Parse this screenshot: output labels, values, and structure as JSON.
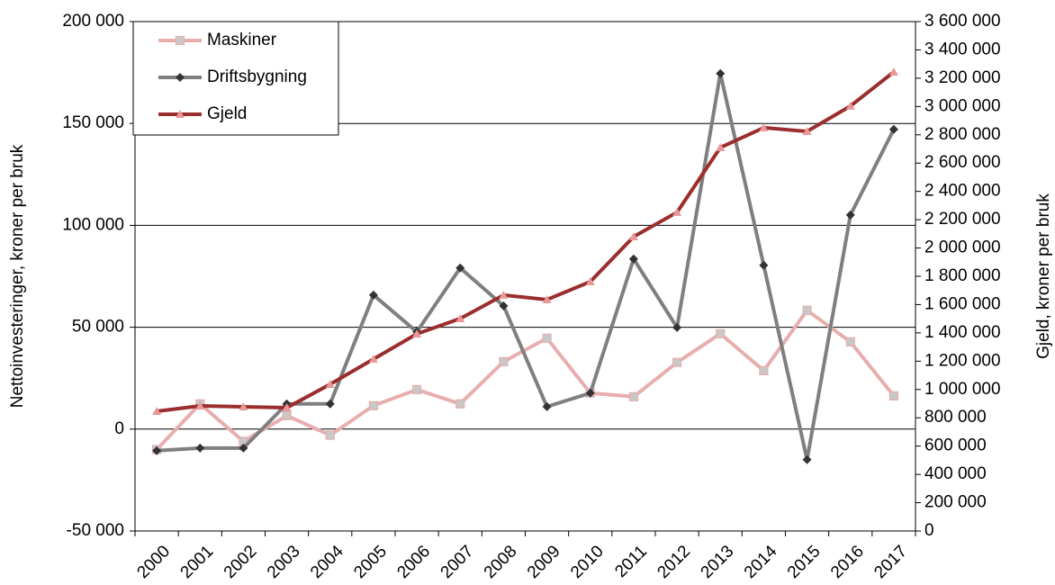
{
  "chart_data": {
    "type": "line",
    "categories": [
      "2000",
      "2001",
      "2002",
      "2003",
      "2004",
      "2005",
      "2006",
      "2007",
      "2008",
      "2009",
      "2010",
      "2011",
      "2012",
      "2013",
      "2014",
      "2015",
      "2016",
      "2017"
    ],
    "series": [
      {
        "name": "Maskiner",
        "color": "#e8aeae",
        "marker": "square",
        "marker_color": "#c8c8c8",
        "values": [
          -10000,
          12400,
          -6000,
          6600,
          -3000,
          11500,
          19400,
          12400,
          33100,
          44600,
          17700,
          15900,
          32700,
          46800,
          28700,
          58300,
          42800,
          16300
        ]
      },
      {
        "name": "Driftsbygning",
        "color": "#7f7f7f",
        "marker": "diamond",
        "marker_color": "#333333",
        "values": [
          -10600,
          -9300,
          -9300,
          12400,
          12400,
          65800,
          47700,
          79100,
          60500,
          11000,
          17700,
          83500,
          49900,
          174500,
          80400,
          -15000,
          105100,
          147100
        ]
      },
      {
        "name": "Gjeld",
        "color": "#9b2d2d",
        "marker": "triangle",
        "marker_color": "#e89898",
        "axis": "y2",
        "values": [
          846000,
          884000,
          878000,
          871000,
          1037000,
          1215000,
          1393000,
          1501000,
          1667000,
          1635000,
          1762000,
          2080000,
          2252000,
          2710000,
          2850000,
          2824000,
          3003000,
          3244000
        ]
      }
    ],
    "ylabel": "Nettoinvesteringer, kroner per bruk",
    "y2label": "Gjeld, kroner per bruk",
    "ylim": [
      -50000,
      200000
    ],
    "yticks": [
      {
        "value": -50000,
        "label": "-50 000"
      },
      0,
      {
        "value": 50000,
        "label": "50 000"
      },
      {
        "value": 100000,
        "label": "100 000"
      },
      {
        "value": 150000,
        "label": "150 000"
      },
      {
        "value": 200000,
        "label": "200 000"
      }
    ],
    "y2lim": [
      0,
      3600000
    ],
    "y2ticks": [
      0,
      {
        "value": 200000,
        "label": "200 000"
      },
      {
        "value": 400000,
        "label": "400 000"
      },
      {
        "value": 600000,
        "label": "600 000"
      },
      {
        "value": 800000,
        "label": "800 000"
      },
      {
        "value": 1000000,
        "label": "1 000 000"
      },
      {
        "value": 1200000,
        "label": "1 200 000"
      },
      {
        "value": 1400000,
        "label": "1 400 000"
      },
      {
        "value": 1600000,
        "label": "1 600 000"
      },
      {
        "value": 1800000,
        "label": "1 800 000"
      },
      {
        "value": 2000000,
        "label": "2 000 000"
      },
      {
        "value": 2200000,
        "label": "2 200 000"
      },
      {
        "value": 2400000,
        "label": "2 400 000"
      },
      {
        "value": 2600000,
        "label": "2 600 000"
      },
      {
        "value": 2800000,
        "label": "2 800 000"
      },
      {
        "value": 3000000,
        "label": "3 000 000"
      },
      {
        "value": 3200000,
        "label": "3 200 000"
      },
      {
        "value": 3400000,
        "label": "3 400 000"
      },
      {
        "value": 3600000,
        "label": "3 600 000"
      }
    ],
    "grid": true,
    "legend": "upper left"
  }
}
